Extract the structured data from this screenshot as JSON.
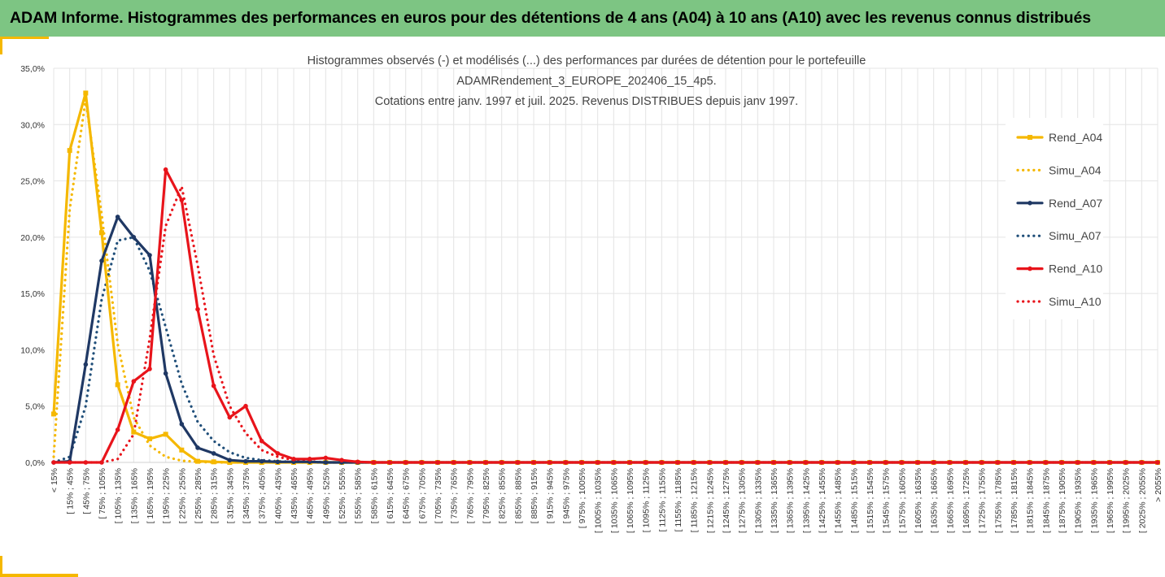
{
  "header": {
    "title": "ADAM Informe. Histogrammes des performances en euros pour des détentions de 4 ans (A04) à 10 ans (A10) avec les revenus connus distribués",
    "bg_color": "#7dc583",
    "accent_color": "#f5b800"
  },
  "chart_data": {
    "type": "line",
    "title_lines": [
      "Histogrammes observés (-) et modélisés (...) des performances par durées de détention pour le portefeuille",
      "ADAMRendement_3_EUROPE_202406_15_4p5.",
      "Cotations entre janv. 1997 et juil. 2025. Revenus DISTRIBUES depuis janv 1997."
    ],
    "xlabel": "",
    "ylabel": "",
    "ylim": [
      0,
      35
    ],
    "yticks": [
      "0,0%",
      "5,0%",
      "10,0%",
      "15,0%",
      "20,0%",
      "25,0%",
      "30,0%",
      "35,0%"
    ],
    "grid": true,
    "legend_position": "right",
    "categories": [
      "< 15%",
      "[ 15% ; 45%",
      "[ 45% ; 75%",
      "[ 75% ; 105%",
      "[ 105% ; 135%",
      "[ 135% ; 165%",
      "[ 165% ; 195%",
      "[ 195% ; 225%",
      "[ 225% ; 255%",
      "[ 255% ; 285%",
      "[ 285% ; 315%",
      "[ 315% ; 345%",
      "[ 345% ; 375%",
      "[ 375% ; 405%",
      "[ 405% ; 435%",
      "[ 435% ; 465%",
      "[ 465% ; 495%",
      "[ 495% ; 525%",
      "[ 525% ; 555%",
      "[ 555% ; 585%",
      "[ 585% ; 615%",
      "[ 615% ; 645%",
      "[ 645% ; 675%",
      "[ 675% ; 705%",
      "[ 705% ; 735%",
      "[ 735% ; 765%",
      "[ 765% ; 795%",
      "[ 795% ; 825%",
      "[ 825% ; 855%",
      "[ 855% ; 885%",
      "[ 885% ; 915%",
      "[ 915% ; 945%",
      "[ 945% ; 975%",
      "[ 975% ; 1005%",
      "[ 1005% ; 1035%",
      "[ 1035% ; 1065%",
      "[ 1065% ; 1095%",
      "[ 1095% ; 1125%",
      "[ 1125% ; 1155%",
      "[ 1155% ; 1185%",
      "[ 1185% ; 1215%",
      "[ 1215% ; 1245%",
      "[ 1245% ; 1275%",
      "[ 1275% ; 1305%",
      "[ 1305% ; 1335%",
      "[ 1335% ; 1365%",
      "[ 1365% ; 1395%",
      "[ 1395% ; 1425%",
      "[ 1425% ; 1455%",
      "[ 1455% ; 1485%",
      "[ 1485% ; 1515%",
      "[ 1515% ; 1545%",
      "[ 1545% ; 1575%",
      "[ 1575% ; 1605%",
      "[ 1605% ; 1635%",
      "[ 1635% ; 1665%",
      "[ 1665% ; 1695%",
      "[ 1695% ; 1725%",
      "[ 1725% ; 1755%",
      "[ 1755% ; 1785%",
      "[ 1785% ; 1815%",
      "[ 1815% ; 1845%",
      "[ 1845% ; 1875%",
      "[ 1875% ; 1905%",
      "[ 1905% ; 1935%",
      "[ 1935% ; 1965%",
      "[ 1965% ; 1995%",
      "[ 1995% ; 2025%",
      "[ 2025% ; 2055%",
      "> 2055%"
    ],
    "series": [
      {
        "name": "Rend_A04",
        "color": "#f5b800",
        "style": "solid",
        "marker": "square",
        "values": [
          4.3,
          27.7,
          32.8,
          20.4,
          6.9,
          2.7,
          2.1,
          2.5,
          1.1,
          0.1,
          0.05,
          0,
          0,
          0,
          0,
          0,
          0,
          0,
          0,
          0,
          0,
          0,
          0,
          0,
          0,
          0,
          0,
          0,
          0,
          0,
          0,
          0,
          0,
          0,
          0,
          0,
          0,
          0,
          0,
          0,
          0,
          0,
          0,
          0,
          0,
          0,
          0,
          0,
          0,
          0,
          0,
          0,
          0,
          0,
          0,
          0,
          0,
          0,
          0,
          0,
          0,
          0,
          0,
          0,
          0,
          0,
          0,
          0,
          0,
          0
        ]
      },
      {
        "name": "Simu_A04",
        "color": "#f5b800",
        "style": "dotted",
        "marker": "none",
        "values": [
          0.5,
          22.5,
          32.2,
          22.0,
          10.5,
          4.0,
          1.5,
          0.5,
          0.15,
          0.05,
          0,
          0,
          0,
          0,
          0,
          0,
          0,
          0,
          0,
          0,
          0,
          0,
          0,
          0,
          0,
          0,
          0,
          0,
          0,
          0,
          0,
          0,
          0,
          0,
          0,
          0,
          0,
          0,
          0,
          0,
          0,
          0,
          0,
          0,
          0,
          0,
          0,
          0,
          0,
          0,
          0,
          0,
          0,
          0,
          0,
          0,
          0,
          0,
          0,
          0,
          0,
          0,
          0,
          0,
          0,
          0,
          0,
          0,
          0,
          0
        ]
      },
      {
        "name": "Rend_A07",
        "color": "#1f3864",
        "style": "solid",
        "marker": "circle",
        "values": [
          0,
          0.1,
          8.7,
          17.9,
          21.8,
          20.0,
          18.4,
          7.9,
          3.4,
          1.3,
          0.8,
          0.2,
          0.1,
          0.1,
          0.05,
          0.05,
          0.05,
          0,
          0,
          0,
          0,
          0,
          0,
          0,
          0,
          0,
          0,
          0,
          0,
          0,
          0,
          0,
          0,
          0,
          0,
          0,
          0,
          0,
          0,
          0,
          0,
          0,
          0,
          0,
          0,
          0,
          0,
          0,
          0,
          0,
          0,
          0,
          0,
          0,
          0,
          0,
          0,
          0,
          0,
          0,
          0,
          0,
          0,
          0,
          0,
          0,
          0,
          0,
          0,
          0
        ]
      },
      {
        "name": "Simu_A07",
        "color": "#1f4e79",
        "style": "dotted",
        "marker": "none",
        "values": [
          0,
          0.5,
          5.0,
          14.5,
          19.7,
          20.0,
          17.0,
          12.0,
          7.0,
          3.6,
          1.9,
          0.9,
          0.4,
          0.2,
          0.1,
          0.05,
          0,
          0,
          0,
          0,
          0,
          0,
          0,
          0,
          0,
          0,
          0,
          0,
          0,
          0,
          0,
          0,
          0,
          0,
          0,
          0,
          0,
          0,
          0,
          0,
          0,
          0,
          0,
          0,
          0,
          0,
          0,
          0,
          0,
          0,
          0,
          0,
          0,
          0,
          0,
          0,
          0,
          0,
          0,
          0,
          0,
          0,
          0,
          0,
          0,
          0,
          0,
          0,
          0,
          0
        ]
      },
      {
        "name": "Rend_A10",
        "color": "#e8141b",
        "style": "solid",
        "marker": "circle",
        "values": [
          0,
          0,
          0,
          0,
          2.9,
          7.2,
          8.3,
          26.0,
          23.3,
          13.6,
          6.8,
          4.0,
          5.0,
          1.9,
          0.8,
          0.3,
          0.3,
          0.4,
          0.2,
          0.05,
          0,
          0,
          0,
          0,
          0,
          0,
          0,
          0,
          0,
          0,
          0,
          0,
          0,
          0,
          0,
          0,
          0,
          0,
          0,
          0,
          0,
          0,
          0,
          0,
          0,
          0,
          0,
          0,
          0,
          0,
          0,
          0,
          0,
          0,
          0,
          0,
          0,
          0,
          0,
          0,
          0,
          0,
          0,
          0,
          0,
          0,
          0,
          0,
          0,
          0
        ]
      },
      {
        "name": "Simu_A10",
        "color": "#e8141b",
        "style": "dotted",
        "marker": "none",
        "values": [
          0,
          0,
          0,
          0,
          0.3,
          2.5,
          11.0,
          21.0,
          24.5,
          17.5,
          9.5,
          5.0,
          2.6,
          1.1,
          0.5,
          0.2,
          0.1,
          0,
          0,
          0,
          0,
          0,
          0,
          0,
          0,
          0,
          0,
          0,
          0,
          0,
          0,
          0,
          0,
          0,
          0,
          0,
          0,
          0,
          0,
          0,
          0,
          0,
          0,
          0,
          0,
          0,
          0,
          0,
          0,
          0,
          0,
          0,
          0,
          0,
          0,
          0,
          0,
          0,
          0,
          0,
          0,
          0,
          0,
          0,
          0,
          0,
          0,
          0,
          0,
          0
        ]
      }
    ]
  }
}
